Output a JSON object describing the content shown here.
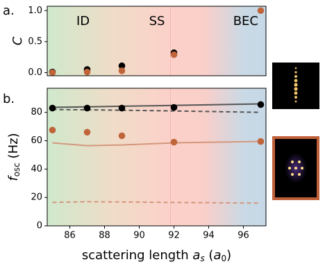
{
  "panel_labels": [
    "a.",
    "b."
  ],
  "region_labels": [
    "ID",
    "SS",
    "BEC"
  ],
  "chart_data": [
    {
      "type": "scatter",
      "y_label": "C",
      "xlim": [
        84.7,
        97.3
      ],
      "ylim": [
        -0.05,
        1.07
      ],
      "yticks": [
        {
          "value": 0,
          "label": "0.0"
        },
        0.5,
        {
          "value": 1,
          "label": "1.0"
        }
      ],
      "vline": 91.8,
      "series": [
        {
          "color": "#000000",
          "x": [
            85,
            87,
            89,
            92
          ],
          "values": [
            0.01,
            0.05,
            0.11,
            0.32
          ]
        },
        {
          "color": "#c0643a",
          "x": [
            85,
            87,
            89,
            92,
            97
          ],
          "values": [
            0.0,
            0.01,
            0.03,
            0.29,
            1.0
          ]
        }
      ]
    },
    {
      "type": "scatter",
      "y_label": {
        "main": "f",
        "sub": "osc",
        "rest": " (Hz)"
      },
      "x_label": {
        "main": "scattering length ",
        "var": "a",
        "sub": "s",
        "open": " (",
        "unit": "a",
        "unit_sub": "0",
        "close": ")"
      },
      "xlim": [
        84.7,
        97.3
      ],
      "xticks": [
        86,
        88,
        90,
        92,
        94,
        96
      ],
      "ylim": [
        0,
        97
      ],
      "yticks": [
        0,
        20,
        40,
        60,
        80
      ],
      "vline": 91.8,
      "series": [
        {
          "color": "#555555",
          "style": "line",
          "x": [
            85,
            87,
            89,
            92,
            97
          ],
          "values": [
            83.5,
            83.9,
            84.3,
            84.9,
            86
          ]
        },
        {
          "color": "#555555",
          "style": "dashed",
          "x": [
            85,
            87,
            89,
            92,
            97
          ],
          "values": [
            82,
            81.8,
            81.5,
            81,
            80
          ]
        },
        {
          "color": "#d4977c",
          "style": "line",
          "x": [
            85,
            87,
            89,
            92,
            97
          ],
          "values": [
            58.5,
            56.5,
            57,
            58.5,
            59.5
          ]
        },
        {
          "color": "#d4977c",
          "style": "dashed",
          "x": [
            85,
            87,
            92,
            97
          ],
          "values": [
            16.5,
            17,
            16.5,
            16
          ]
        },
        {
          "color": "#000000",
          "style": "dots",
          "x": [
            85,
            87,
            89,
            92,
            97
          ],
          "values": [
            83,
            83,
            83,
            83.5,
            85.5
          ]
        },
        {
          "color": "#c0643a",
          "style": "dots",
          "x": [
            85,
            87,
            89,
            92,
            97
          ],
          "values": [
            67.5,
            66,
            63.5,
            59,
            59.5
          ]
        }
      ]
    }
  ]
}
